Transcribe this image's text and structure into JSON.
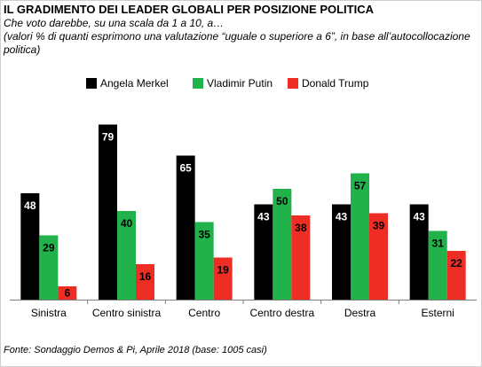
{
  "header": {
    "title": "IL GRADIMENTO DEI LEADER GLOBALI PER POSIZIONE POLITICA",
    "subtitle": "Che voto darebbe, su una scala da 1 a 10, a…",
    "note": "(valori % di quanti esprimono una valutazione “uguale o superiore a 6”, in base all’autocollocazione politica)"
  },
  "footer": {
    "source": "Fonte: Sondaggio Demos & Pi, Aprile 2018 (base: 1005 casi)"
  },
  "chart_data": {
    "type": "bar",
    "title": "IL GRADIMENTO DEI LEADER GLOBALI PER POSIZIONE POLITICA",
    "categories": [
      "Sinistra",
      "Centro sinistra",
      "Centro",
      "Centro destra",
      "Destra",
      "Esterni"
    ],
    "series": [
      {
        "name": "Angela Merkel",
        "color": "#000000",
        "label_color": "#ffffff",
        "values": [
          48,
          79,
          65,
          43,
          43,
          43
        ]
      },
      {
        "name": "Vladimir Putin",
        "color": "#21b24b",
        "label_color": "#000000",
        "values": [
          29,
          40,
          35,
          50,
          57,
          31
        ]
      },
      {
        "name": "Donald Trump",
        "color": "#ee2e24",
        "label_color": "#000000",
        "values": [
          6,
          16,
          19,
          38,
          39,
          22
        ]
      }
    ],
    "ylim": [
      0,
      80
    ],
    "grid": false,
    "legend_position": "top"
  }
}
